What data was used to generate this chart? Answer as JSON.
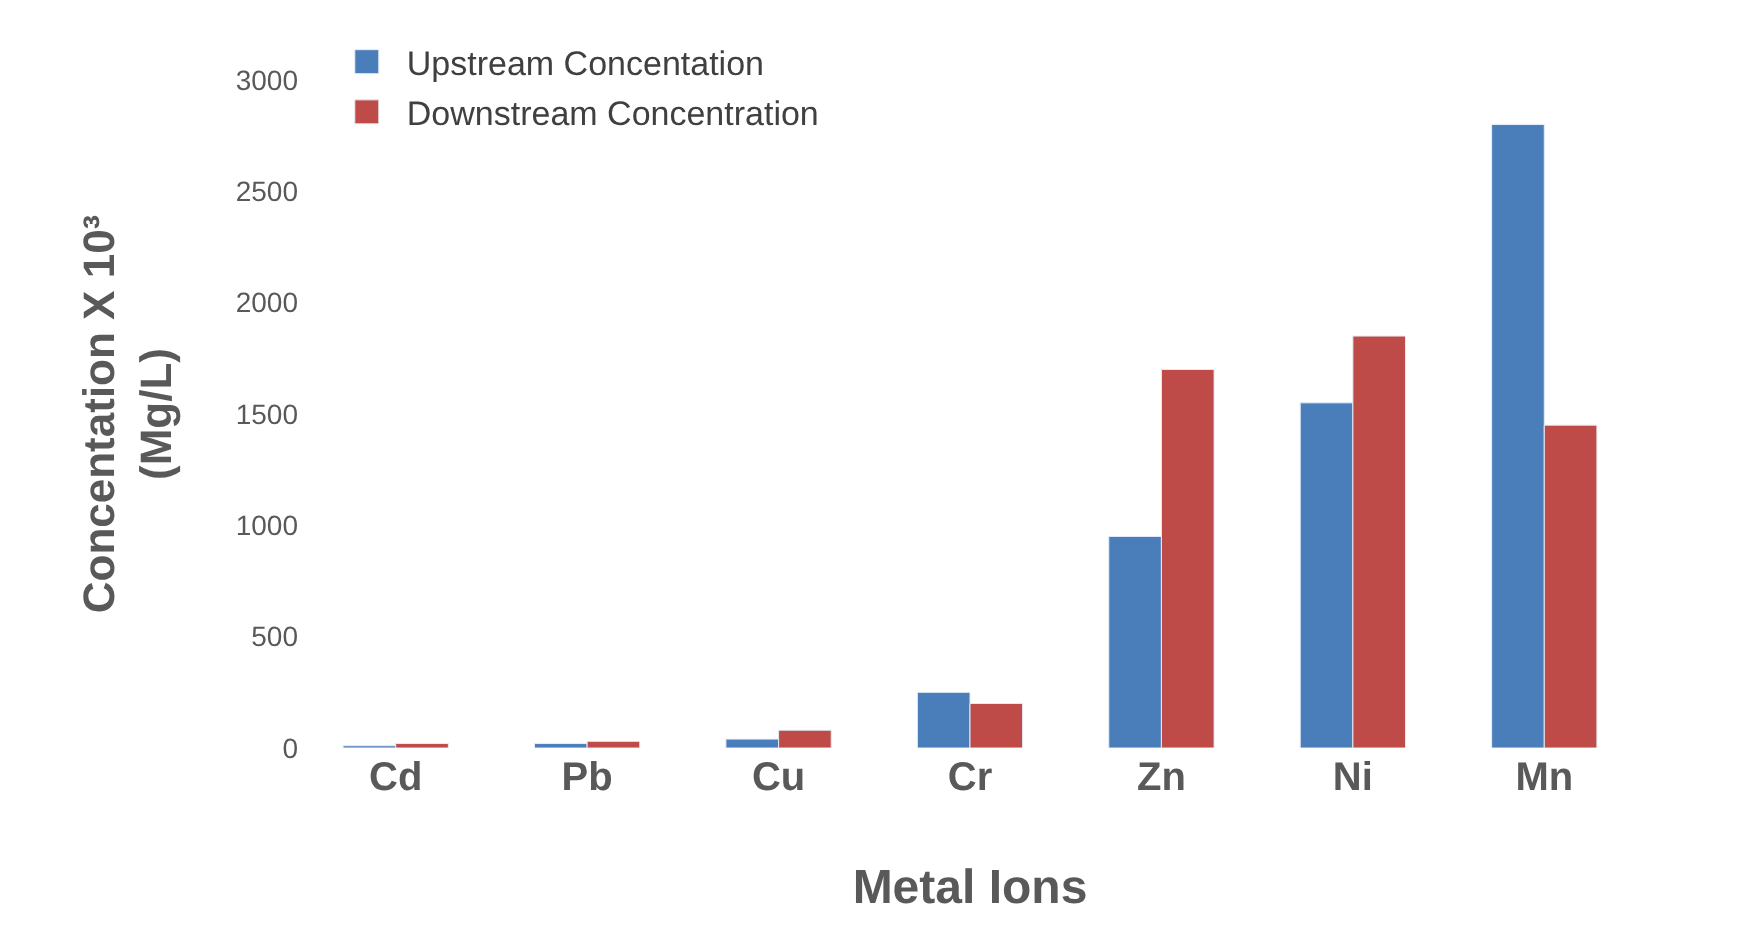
{
  "chart_data": {
    "type": "bar",
    "categories": [
      "Cd",
      "Pb",
      "Cu",
      "Cr",
      "Zn",
      "Ni",
      "Mn"
    ],
    "series": [
      {
        "name": "Upstream Concentation",
        "color": "#4a7ebb",
        "values": [
          10,
          20,
          40,
          250,
          950,
          1550,
          2800
        ]
      },
      {
        "name": "Downstream Concentration",
        "color": "#be4b48",
        "values": [
          20,
          30,
          80,
          200,
          1700,
          1850,
          1450
        ]
      }
    ],
    "xlabel": "Metal Ions",
    "ylabel": "Concentation X 10³ (Mg/L)",
    "ylim": [
      0,
      3000
    ],
    "yticks": [
      0,
      500,
      1000,
      1500,
      2000,
      2500,
      3000
    ],
    "legend": "top left"
  }
}
